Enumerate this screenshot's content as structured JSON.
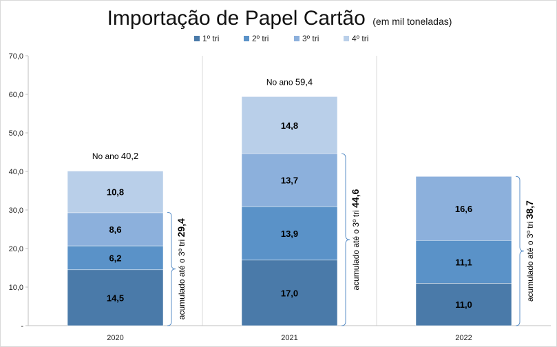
{
  "chart_data": {
    "type": "bar",
    "stacked": true,
    "title": "Importação de Papel Cartão",
    "subtitle": "(em mil toneladas)",
    "categories": [
      "2020",
      "2021",
      "2022"
    ],
    "series": [
      {
        "name": "1º tri",
        "color": "#4a7aa9",
        "values": [
          14.5,
          17.0,
          11.0
        ],
        "labels": [
          "14,5",
          "17,0",
          "11,0"
        ]
      },
      {
        "name": "2º tri",
        "color": "#5a92c8",
        "values": [
          6.2,
          13.9,
          11.1
        ],
        "labels": [
          "6,2",
          "13,9",
          "11,1"
        ]
      },
      {
        "name": "3º tri",
        "color": "#8cb0dc",
        "values": [
          8.6,
          13.7,
          16.6
        ],
        "labels": [
          "8,6",
          "13,7",
          "16,6"
        ]
      },
      {
        "name": "4º tri",
        "color": "#b9cfe9",
        "values": [
          10.8,
          14.8,
          null
        ],
        "labels": [
          "10,8",
          "14,8",
          ""
        ]
      }
    ],
    "ylim": [
      0,
      70
    ],
    "y_ticks": [
      "-",
      "10,0",
      "20,0",
      "30,0",
      "40,0",
      "50,0",
      "60,0",
      "70,0"
    ],
    "totals": [
      {
        "prefix": "No ano",
        "value": "40,2",
        "numeric": 40.2
      },
      {
        "prefix": "No ano",
        "value": "59,4",
        "numeric": 59.4
      },
      null
    ],
    "accumulated": [
      {
        "text": "acumulado até o 3º tri",
        "value": "29,4",
        "numeric": 29.4
      },
      {
        "text": "acumulado até o 3º tri",
        "value": "44,6",
        "numeric": 44.6
      },
      {
        "text": "acumulado até o 3º tri",
        "value": "38,7",
        "numeric": 38.7
      }
    ],
    "legend_position": "top",
    "grid": "vertical separators"
  }
}
